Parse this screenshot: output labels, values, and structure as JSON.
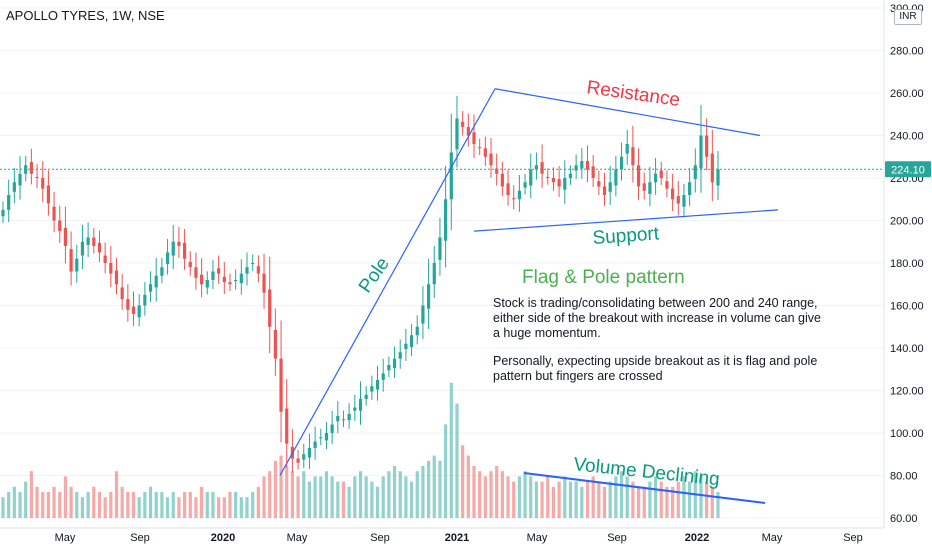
{
  "header": {
    "symbol": "APOLLO TYRES, 1W, NSE",
    "currency": "INR"
  },
  "annotations": {
    "resistance": "Resistance",
    "support": "Support",
    "pole": "Pole",
    "pattern_title": "Flag & Pole pattern",
    "volume": "Volume Declining",
    "note1": "Stock is trading/consolidating between 200 and 240 range, either side of the breakout with increase in volume can give a huge momentum.",
    "note2": "Personally, expecting upside breakout as it is flag and pole pattern but fingers are crossed"
  },
  "colors": {
    "up": "#26a69a",
    "down": "#ef5350",
    "trendline": "#2962ff",
    "volume_line": "#2962ff",
    "resistance_text": "#f23645",
    "support_text": "#089981",
    "pattern_title": "#4caf50",
    "price_line": "#26a69a"
  },
  "chart_data": {
    "type": "candlestick",
    "title": "APOLLO TYRES, 1W, NSE",
    "y_unit": "INR",
    "ylim": [
      60,
      300
    ],
    "y_ticks": [
      300,
      280,
      260,
      240,
      220,
      200,
      180,
      160,
      140,
      120,
      100,
      80,
      60
    ],
    "y_tick_labels": [
      "300.00",
      "280.00",
      "260.00",
      "240.00",
      "220.00",
      "200.00",
      "180.00",
      "160.00",
      "140.00",
      "120.00",
      "100.00",
      "80.00",
      "60.00"
    ],
    "x_tick_labels": [
      "May",
      "Sep",
      "2020",
      "May",
      "Sep",
      "2021",
      "May",
      "Sep",
      "2022",
      "May",
      "Sep"
    ],
    "last_price": 224.1,
    "last_price_label": "224.10",
    "trendlines": [
      {
        "name": "Resistance",
        "points": [
          [
            0,
            262
          ],
          [
            1,
            240
          ]
        ]
      },
      {
        "name": "Support",
        "points": [
          [
            0,
            195
          ],
          [
            1,
            205
          ]
        ]
      },
      {
        "name": "Pole",
        "points": [
          [
            0,
            80
          ],
          [
            1,
            262
          ]
        ]
      }
    ],
    "closes": [
      205,
      212,
      218,
      222,
      226,
      222,
      220,
      215,
      208,
      200,
      195,
      188,
      176,
      182,
      190,
      192,
      188,
      185,
      180,
      175,
      170,
      163,
      158,
      156,
      160,
      165,
      170,
      174,
      178,
      185,
      190,
      188,
      182,
      178,
      173,
      170,
      172,
      176,
      175,
      171,
      170,
      172,
      175,
      178,
      180,
      175,
      166,
      150,
      135,
      110,
      95,
      88,
      86,
      90,
      93,
      96,
      98,
      100,
      104,
      108,
      106,
      109,
      112,
      116,
      118,
      122,
      125,
      128,
      132,
      135,
      138,
      142,
      146,
      150,
      160,
      170,
      180,
      192,
      210,
      232,
      248,
      244,
      240,
      236,
      234,
      230,
      226,
      222,
      216,
      212,
      210,
      214,
      218,
      224,
      226,
      222,
      220,
      218,
      216,
      220,
      222,
      226,
      228,
      224,
      220,
      216,
      212,
      218,
      224,
      230,
      236,
      226,
      216,
      214,
      218,
      222,
      220,
      215,
      210,
      208,
      212,
      218,
      226,
      240,
      230,
      218,
      224.1
    ],
    "volumes": [
      4,
      5,
      6,
      5,
      7,
      9,
      6,
      5,
      5,
      6,
      5,
      8,
      6,
      5,
      4,
      5,
      6,
      5,
      4,
      5,
      9,
      6,
      5,
      5,
      4,
      5,
      6,
      5,
      5,
      4,
      5,
      4,
      5,
      5,
      4,
      6,
      5,
      5,
      4,
      4,
      5,
      5,
      4,
      4,
      5,
      6,
      8,
      9,
      11,
      12,
      10,
      9,
      8,
      9,
      7,
      8,
      8,
      9,
      8,
      7,
      7,
      6,
      8,
      9,
      8,
      7,
      6,
      8,
      9,
      10,
      9,
      8,
      7,
      9,
      10,
      11,
      12,
      11,
      18,
      26,
      22,
      14,
      12,
      10,
      9,
      8,
      9,
      10,
      9,
      8,
      7,
      8,
      9,
      8,
      7,
      7,
      8,
      6,
      7,
      8,
      7,
      7,
      6,
      7,
      8,
      7,
      6,
      7,
      8,
      9,
      8,
      7,
      6,
      6,
      7,
      8,
      7,
      6,
      6,
      7,
      8,
      7,
      9,
      8,
      7,
      6,
      5
    ]
  }
}
